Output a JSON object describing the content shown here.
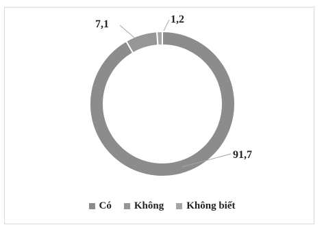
{
  "chart_data": {
    "type": "pie",
    "style": "donut",
    "categories": [
      "Có",
      "Không",
      "Không biết"
    ],
    "values": [
      91.7,
      7.1,
      1.2
    ],
    "data_labels": [
      "91,7",
      "7,1",
      "1,2"
    ],
    "colors": [
      "#8c8c8c",
      "#969696",
      "#a6a6a6"
    ],
    "legend_position": "bottom",
    "title": ""
  }
}
